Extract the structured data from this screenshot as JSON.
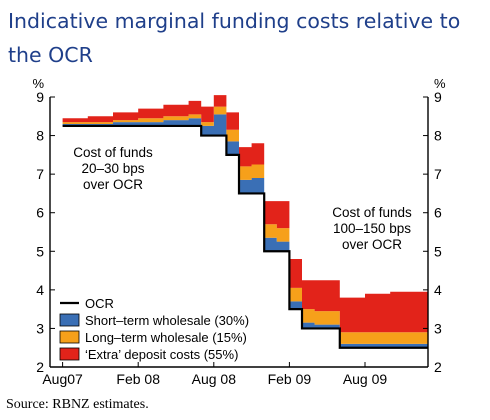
{
  "title": "Indicative marginal funding costs relative to the OCR",
  "source": "Source: RBNZ estimates.",
  "chart_data": {
    "type": "area",
    "title": "Indicative marginal funding costs relative to the OCR",
    "y_unit_left": "%",
    "y_unit_right": "%",
    "ylim": [
      2,
      9
    ],
    "yticks": [
      2,
      3,
      4,
      5,
      6,
      7,
      8,
      9
    ],
    "x_tick_labels": [
      "Aug07",
      "Feb 08",
      "Aug 08",
      "Feb 09",
      "Aug 09"
    ],
    "x_tick_dates": [
      "2007-08",
      "2008-02",
      "2008-08",
      "2009-02",
      "2009-08"
    ],
    "xlim": [
      "2007-07",
      "2010-01"
    ],
    "grid": false,
    "legend_position": "bottom-left",
    "colors": {
      "ocr": "#000000",
      "short_term_wholesale": "#3a6fb5",
      "long_term_wholesale": "#f6a01a",
      "extra_deposit": "#e2231a"
    },
    "legend": [
      {
        "key": "ocr",
        "label": "OCR"
      },
      {
        "key": "short_term_wholesale",
        "label": "Short–term wholesale (30%)"
      },
      {
        "key": "long_term_wholesale",
        "label": "Long–term wholesale (15%)"
      },
      {
        "key": "extra_deposit",
        "label": "‘Extra’ deposit costs (55%)"
      }
    ],
    "annotations": [
      {
        "id": "left",
        "lines": [
          "Cost of funds",
          "20–30 bps",
          "over OCR"
        ]
      },
      {
        "id": "right",
        "lines": [
          "Cost of funds",
          "100–150 bps",
          "over OCR"
        ]
      }
    ],
    "x": [
      "2007-08",
      "2007-10",
      "2007-12",
      "2008-02",
      "2008-04",
      "2008-06",
      "2008-07",
      "2008-08",
      "2008-09",
      "2008-10",
      "2008-11",
      "2008-12",
      "2009-01",
      "2009-02",
      "2009-03",
      "2009-04",
      "2009-06",
      "2009-08",
      "2009-10",
      "2009-12"
    ],
    "series": [
      {
        "name": "OCR",
        "values": [
          8.25,
          8.25,
          8.25,
          8.25,
          8.25,
          8.25,
          8.0,
          8.0,
          7.5,
          6.5,
          6.5,
          5.0,
          5.0,
          3.5,
          3.0,
          3.0,
          2.5,
          2.5,
          2.5,
          2.5
        ]
      },
      {
        "name": "Short–term wholesale (30%)",
        "values": [
          0.05,
          0.05,
          0.1,
          0.1,
          0.15,
          0.2,
          0.25,
          0.55,
          0.35,
          0.35,
          0.4,
          0.35,
          0.25,
          0.2,
          0.15,
          0.1,
          0.1,
          0.1,
          0.1,
          0.1
        ]
      },
      {
        "name": "Long–term wholesale (15%)",
        "values": [
          0.05,
          0.05,
          0.05,
          0.1,
          0.1,
          0.1,
          0.1,
          0.2,
          0.3,
          0.35,
          0.35,
          0.35,
          0.35,
          0.35,
          0.35,
          0.35,
          0.3,
          0.3,
          0.3,
          0.3
        ]
      },
      {
        "name": "‘Extra’ deposit costs (55%)",
        "values": [
          0.1,
          0.15,
          0.2,
          0.25,
          0.3,
          0.35,
          0.4,
          0.3,
          0.45,
          0.5,
          0.55,
          0.6,
          0.7,
          0.75,
          0.75,
          0.8,
          0.9,
          1.0,
          1.05,
          1.05
        ]
      }
    ]
  }
}
